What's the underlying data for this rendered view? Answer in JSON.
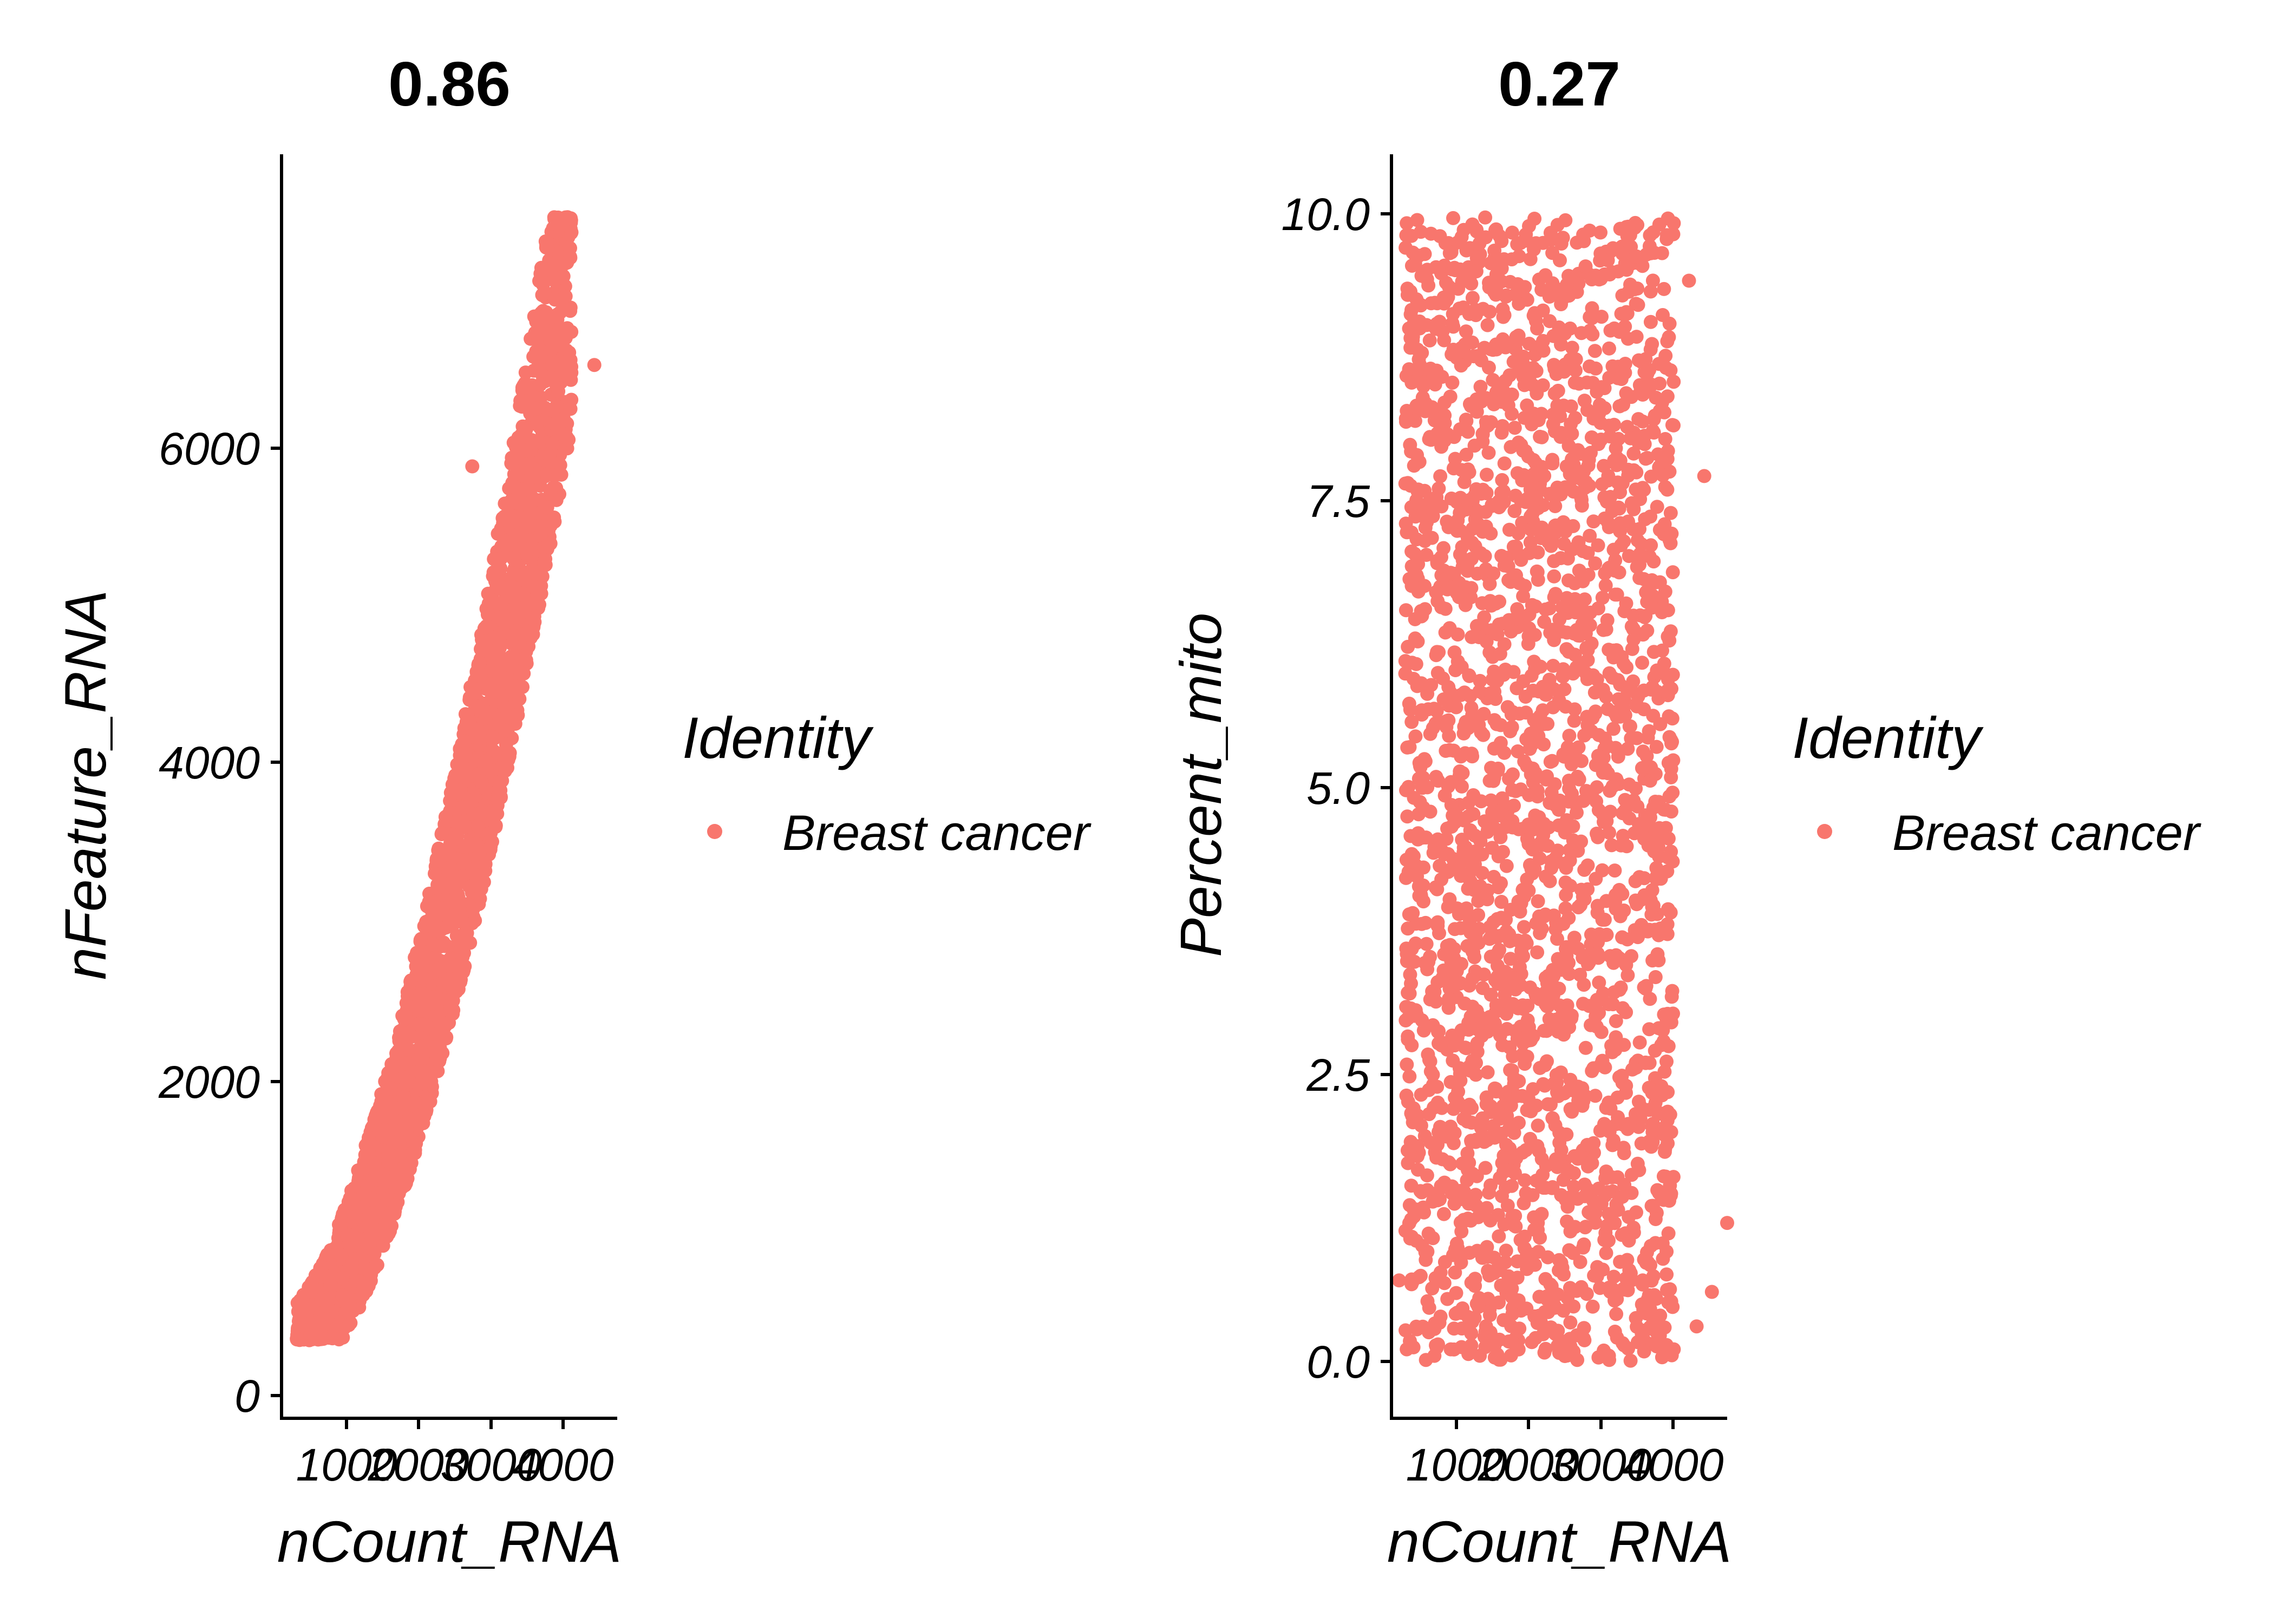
{
  "colors": {
    "point": "#F8766D",
    "axis": "#000000"
  },
  "legend": {
    "title": "Identity",
    "label": "Breast cancer"
  },
  "chart_data": [
    {
      "type": "scatter",
      "title": "0.86",
      "xlabel": "nCount_RNA",
      "ylabel": "nFeature_RNA",
      "xlim": [
        100,
        4500
      ],
      "ylim": [
        -300,
        7800
      ],
      "xticks": [
        1000,
        2000,
        3000,
        4000
      ],
      "xtick_labels": [
        "1000",
        "2000",
        "3000",
        "4000"
      ],
      "yticks": [
        0,
        2000,
        4000,
        6000
      ],
      "ytick_labels": [
        "0",
        "2000",
        "4000",
        "6000"
      ],
      "legend": {
        "title": "Identity",
        "entries": [
          "Breast cancer"
        ]
      },
      "grid": false,
      "series": [
        {
          "name": "Breast cancer",
          "color": "#F8766D",
          "points": [
            [
              300,
              210
            ],
            [
              500,
              300
            ],
            [
              700,
              420
            ],
            [
              900,
              600
            ],
            [
              1100,
              850
            ],
            [
              1300,
              1100
            ],
            [
              1500,
              1400
            ],
            [
              1700,
              1700
            ],
            [
              1900,
              2000
            ],
            [
              2100,
              2400
            ],
            [
              2300,
              2900
            ],
            [
              2500,
              3500
            ],
            [
              2700,
              4100
            ],
            [
              2900,
              4700
            ],
            [
              3100,
              5300
            ],
            [
              3300,
              5900
            ],
            [
              3500,
              6500
            ],
            [
              3700,
              7000
            ],
            [
              3900,
              7300
            ],
            [
              4200,
              6450
            ],
            [
              3150,
              5750
            ],
            [
              2600,
              5800
            ]
          ]
        }
      ]
    },
    {
      "type": "scatter",
      "title": "0.27",
      "xlabel": "nCount_RNA",
      "ylabel": "Percent_mito",
      "xlim": [
        100,
        4500
      ],
      "ylim": [
        -0.5,
        10.5
      ],
      "xticks": [
        1000,
        2000,
        3000,
        4000
      ],
      "xtick_labels": [
        "1000",
        "2000",
        "3000",
        "4000"
      ],
      "yticks": [
        0.0,
        2.5,
        5.0,
        7.5,
        10.0
      ],
      "ytick_labels": [
        "0.0",
        "2.5",
        "5.0",
        "7.5",
        "10.0"
      ],
      "legend": {
        "title": "Identity",
        "entries": [
          "Breast cancer"
        ]
      },
      "grid": false,
      "series": [
        {
          "name": "Breast cancer",
          "color": "#F8766D",
          "points": [
            [
              300,
              0.1
            ],
            [
              300,
              9.9
            ],
            [
              3800,
              0.1
            ],
            [
              3800,
              9.9
            ],
            [
              500,
              5.0
            ],
            [
              1000,
              2.5
            ],
            [
              2000,
              7.5
            ],
            [
              3000,
              5.0
            ],
            [
              3500,
              1.0
            ],
            [
              4000,
              9.4
            ],
            [
              4200,
              7.7
            ],
            [
              4500,
              1.2
            ],
            [
              4300,
              0.6
            ],
            [
              4100,
              0.3
            ],
            [
              200,
              0.7
            ],
            [
              350,
              8.9
            ]
          ]
        }
      ]
    }
  ]
}
